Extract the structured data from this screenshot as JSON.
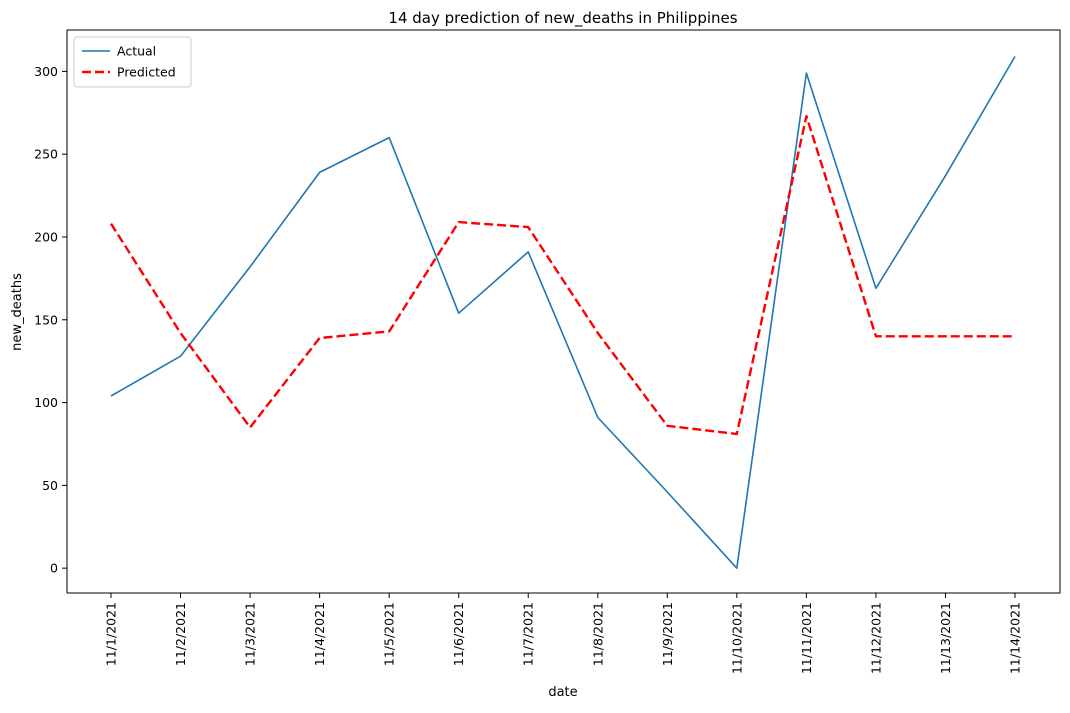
{
  "chart_data": {
    "type": "line",
    "title": "14 day prediction of new_deaths in Philippines",
    "xlabel": "date",
    "ylabel": "new_deaths",
    "categories": [
      "11/1/2021",
      "11/2/2021",
      "11/3/2021",
      "11/4/2021",
      "11/5/2021",
      "11/6/2021",
      "11/7/2021",
      "11/8/2021",
      "11/9/2021",
      "11/10/2021",
      "11/11/2021",
      "11/12/2021",
      "11/13/2021",
      "11/14/2021"
    ],
    "yticks": [
      0,
      50,
      100,
      150,
      200,
      250,
      300
    ],
    "ylim": [
      -15,
      325
    ],
    "grid": false,
    "legend": "top-left",
    "series": [
      {
        "name": "Actual",
        "color": "#1f77b4",
        "style": "solid",
        "values": [
          104,
          128,
          182,
          239,
          260,
          154,
          191,
          91,
          46,
          0,
          299,
          169,
          237,
          309
        ]
      },
      {
        "name": "Predicted",
        "color": "#ff0000",
        "style": "dashed",
        "values": [
          208,
          142,
          85,
          139,
          143,
          209,
          206,
          142,
          86,
          81,
          273,
          140,
          140,
          140
        ]
      }
    ]
  }
}
